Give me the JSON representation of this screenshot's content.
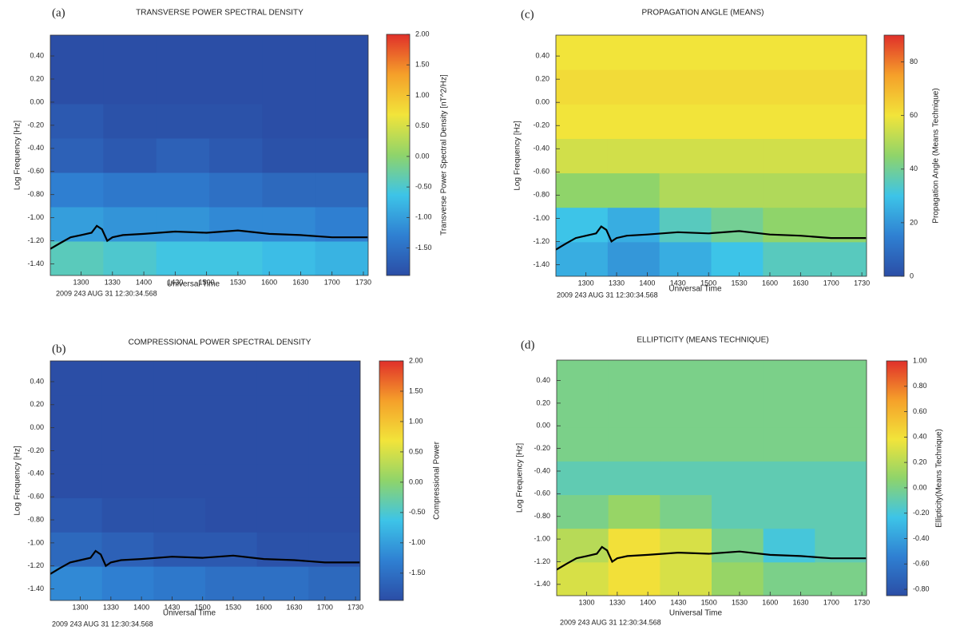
{
  "chart_data": [
    {
      "type": "spectrogram",
      "panel_label": "(a)",
      "title": "TRANSVERSE POWER SPECTRAL DENSITY",
      "x_label": "Universal Time",
      "y_label": "Log Frequency [Hz]",
      "colorbar_label": "Transverse Power Spectral Density [nT^2/Hz]",
      "footer": "2009 243 AUG 31 12:30:34.568",
      "xlim": [
        750.57,
        1054.6
      ],
      "xticks": [
        {
          "value": 780,
          "label": "1300"
        },
        {
          "value": 810,
          "label": "1330"
        },
        {
          "value": 840,
          "label": "1400"
        },
        {
          "value": 870,
          "label": "1430"
        },
        {
          "value": 900,
          "label": "1500"
        },
        {
          "value": 930,
          "label": "1530"
        },
        {
          "value": 960,
          "label": "1600"
        },
        {
          "value": 990,
          "label": "1630"
        },
        {
          "value": 1020,
          "label": "1700"
        },
        {
          "value": 1050,
          "label": "1730"
        }
      ],
      "ylim": [
        -1.5,
        0.58
      ],
      "yticks": [
        {
          "value": -1.4,
          "label": "-1.40"
        },
        {
          "value": -1.2,
          "label": "-1.20"
        },
        {
          "value": -1.0,
          "label": "-1.00"
        },
        {
          "value": -0.8,
          "label": "-0.80"
        },
        {
          "value": -0.6,
          "label": "-0.60"
        },
        {
          "value": -0.4,
          "label": "-0.40"
        },
        {
          "value": -0.2,
          "label": "-0.20"
        },
        {
          "value": 0,
          "label": "0.00"
        },
        {
          "value": 0.2,
          "label": "0.20"
        },
        {
          "value": 0.4,
          "label": "0.40"
        }
      ],
      "clim": [
        -1.95,
        2.0
      ],
      "cticks": [
        {
          "value": -1.5,
          "label": "-1.50"
        },
        {
          "value": -1.0,
          "label": "-1.00"
        },
        {
          "value": -0.5,
          "label": "-0.50"
        },
        {
          "value": 0,
          "label": "0.00"
        },
        {
          "value": 0.5,
          "label": "0.50"
        },
        {
          "value": 1.0,
          "label": "1.00"
        },
        {
          "value": 1.5,
          "label": "1.50"
        },
        {
          "value": 2.0,
          "label": "2.00"
        }
      ],
      "colormap": [
        "#2b4ea6",
        "#2f80d2",
        "#3dc4e8",
        "#8fd46a",
        "#f2e43a",
        "#f5a02a",
        "#e0302a"
      ],
      "values": [
        [
          -0.4,
          -0.5,
          -0.6,
          -0.6,
          -0.7,
          -0.8
        ],
        [
          -1.0,
          -1.1,
          -1.1,
          -1.2,
          -1.2,
          -1.3
        ],
        [
          -1.3,
          -1.4,
          -1.4,
          -1.5,
          -1.6,
          -1.6
        ],
        [
          -1.7,
          -1.8,
          -1.7,
          -1.8,
          -1.9,
          -1.9
        ],
        [
          -1.8,
          -1.9,
          -1.9,
          -1.9,
          -1.95,
          -1.95
        ],
        [
          -1.95,
          -1.95,
          -1.95,
          -1.95,
          -1.95,
          -1.95
        ],
        [
          -1.95,
          -1.95,
          -1.95,
          -1.95,
          -1.95,
          -1.95
        ]
      ],
      "line": {
        "color": "#000000",
        "x": [
          750.6,
          760,
          770,
          780,
          790,
          795,
          800,
          805,
          810,
          820,
          840,
          870,
          900,
          930,
          960,
          990,
          1020,
          1054
        ],
        "y": [
          -1.27,
          -1.22,
          -1.17,
          -1.15,
          -1.13,
          -1.07,
          -1.1,
          -1.2,
          -1.17,
          -1.15,
          -1.14,
          -1.12,
          -1.13,
          -1.11,
          -1.14,
          -1.15,
          -1.17,
          -1.17
        ]
      }
    },
    {
      "type": "spectrogram",
      "panel_label": "(b)",
      "title": "COMPRESSIONAL POWER SPECTRAL DENSITY",
      "x_label": "Universal Time",
      "y_label": "Log Frequency [Hz]",
      "colorbar_label": "Compressional Power",
      "footer": "2009 243 AUG 31 12:30:34.568",
      "xlim": [
        750.57,
        1054.6
      ],
      "xticks": [
        {
          "value": 780,
          "label": "1300"
        },
        {
          "value": 810,
          "label": "1330"
        },
        {
          "value": 840,
          "label": "1400"
        },
        {
          "value": 870,
          "label": "1430"
        },
        {
          "value": 900,
          "label": "1500"
        },
        {
          "value": 930,
          "label": "1530"
        },
        {
          "value": 960,
          "label": "1600"
        },
        {
          "value": 990,
          "label": "1630"
        },
        {
          "value": 1020,
          "label": "1700"
        },
        {
          "value": 1050,
          "label": "1730"
        }
      ],
      "ylim": [
        -1.5,
        0.58
      ],
      "yticks": [
        {
          "value": -1.4,
          "label": "-1.40"
        },
        {
          "value": -1.2,
          "label": "-1.20"
        },
        {
          "value": -1.0,
          "label": "-1.00"
        },
        {
          "value": -0.8,
          "label": "-0.80"
        },
        {
          "value": -0.6,
          "label": "-0.60"
        },
        {
          "value": -0.4,
          "label": "-0.40"
        },
        {
          "value": -0.2,
          "label": "-0.20"
        },
        {
          "value": 0,
          "label": "0.00"
        },
        {
          "value": 0.2,
          "label": "0.20"
        },
        {
          "value": 0.4,
          "label": "0.40"
        }
      ],
      "clim": [
        -1.95,
        2.0
      ],
      "cticks": [
        {
          "value": -1.5,
          "label": "-1.50"
        },
        {
          "value": -1.0,
          "label": "-1.00"
        },
        {
          "value": -0.5,
          "label": "-0.50"
        },
        {
          "value": 0,
          "label": "0.00"
        },
        {
          "value": 0.5,
          "label": "0.50"
        },
        {
          "value": 1.0,
          "label": "1.00"
        },
        {
          "value": 1.5,
          "label": "1.50"
        },
        {
          "value": 2.0,
          "label": "2.00"
        }
      ],
      "colormap": [
        "#2b4ea6",
        "#2f80d2",
        "#3dc4e8",
        "#8fd46a",
        "#f2e43a",
        "#f5a02a",
        "#e0302a"
      ],
      "values": [
        [
          -1.2,
          -1.3,
          -1.4,
          -1.5,
          -1.5,
          -1.6
        ],
        [
          -1.6,
          -1.7,
          -1.8,
          -1.8,
          -1.9,
          -1.9
        ],
        [
          -1.8,
          -1.9,
          -1.9,
          -1.95,
          -1.95,
          -1.95
        ],
        [
          -1.95,
          -1.95,
          -1.95,
          -1.95,
          -1.95,
          -1.95
        ],
        [
          -1.95,
          -1.95,
          -1.95,
          -1.95,
          -1.95,
          -1.95
        ],
        [
          -1.95,
          -1.95,
          -1.95,
          -1.95,
          -1.95,
          -1.95
        ],
        [
          -1.95,
          -1.95,
          -1.95,
          -1.95,
          -1.95,
          -1.95
        ]
      ],
      "line": {
        "color": "#000000",
        "x": [
          750.6,
          760,
          770,
          780,
          790,
          795,
          800,
          805,
          810,
          820,
          840,
          870,
          900,
          930,
          960,
          990,
          1020,
          1054
        ],
        "y": [
          -1.27,
          -1.22,
          -1.17,
          -1.15,
          -1.13,
          -1.07,
          -1.1,
          -1.2,
          -1.17,
          -1.15,
          -1.14,
          -1.12,
          -1.13,
          -1.11,
          -1.14,
          -1.15,
          -1.17,
          -1.17
        ]
      }
    },
    {
      "type": "spectrogram",
      "panel_label": "(c)",
      "title": "PROPAGATION ANGLE (MEANS)",
      "x_label": "Universal Time",
      "y_label": "Log Frequency [Hz]",
      "colorbar_label": "Propagation Angle (Means Technique)",
      "footer": "2009 243 AUG 31 12:30:34.568",
      "xlim": [
        750.57,
        1054.6
      ],
      "xticks": [
        {
          "value": 780,
          "label": "1300"
        },
        {
          "value": 810,
          "label": "1330"
        },
        {
          "value": 840,
          "label": "1400"
        },
        {
          "value": 870,
          "label": "1430"
        },
        {
          "value": 900,
          "label": "1500"
        },
        {
          "value": 930,
          "label": "1530"
        },
        {
          "value": 960,
          "label": "1600"
        },
        {
          "value": 990,
          "label": "1630"
        },
        {
          "value": 1020,
          "label": "1700"
        },
        {
          "value": 1050,
          "label": "1730"
        }
      ],
      "ylim": [
        -1.5,
        0.58
      ],
      "yticks": [
        {
          "value": -1.4,
          "label": "-1.40"
        },
        {
          "value": -1.2,
          "label": "-1.20"
        },
        {
          "value": -1.0,
          "label": "-1.00"
        },
        {
          "value": -0.8,
          "label": "-0.80"
        },
        {
          "value": -0.6,
          "label": "-0.60"
        },
        {
          "value": -0.4,
          "label": "-0.40"
        },
        {
          "value": -0.2,
          "label": "-0.20"
        },
        {
          "value": 0,
          "label": "0.00"
        },
        {
          "value": 0.2,
          "label": "0.20"
        },
        {
          "value": 0.4,
          "label": "0.40"
        }
      ],
      "clim": [
        0,
        90
      ],
      "cticks": [
        0,
        20,
        40,
        60,
        80
      ],
      "colormap": [
        "#2b4ea6",
        "#2f80d2",
        "#3dc4e8",
        "#8fd46a",
        "#f2e43a",
        "#f5a02a",
        "#e0302a"
      ],
      "values": [
        [
          25,
          20,
          25,
          30,
          35,
          35
        ],
        [
          30,
          25,
          35,
          40,
          45,
          45
        ],
        [
          45,
          45,
          50,
          50,
          50,
          50
        ],
        [
          55,
          55,
          55,
          55,
          55,
          55
        ],
        [
          60,
          60,
          60,
          60,
          60,
          60
        ],
        [
          62,
          62,
          62,
          62,
          62,
          62
        ],
        [
          60,
          60,
          60,
          60,
          60,
          60
        ]
      ],
      "line": {
        "color": "#000000",
        "x": [
          750.6,
          760,
          770,
          780,
          790,
          795,
          800,
          805,
          810,
          820,
          840,
          870,
          900,
          930,
          960,
          990,
          1020,
          1054
        ],
        "y": [
          -1.27,
          -1.22,
          -1.17,
          -1.15,
          -1.13,
          -1.07,
          -1.1,
          -1.2,
          -1.17,
          -1.15,
          -1.14,
          -1.12,
          -1.13,
          -1.11,
          -1.14,
          -1.15,
          -1.17,
          -1.17
        ]
      }
    },
    {
      "type": "spectrogram",
      "panel_label": "(d)",
      "title": "ELLIPTICITY (MEANS TECHNIQUE)",
      "x_label": "Universal Time",
      "y_label": "Log Frequency [Hz]",
      "colorbar_label": "Ellipticity(Means Technique)",
      "footer": "2009 243 AUG 31 12:30:34.568",
      "xlim": [
        750.57,
        1054.6
      ],
      "xticks": [
        {
          "value": 780,
          "label": "1300"
        },
        {
          "value": 810,
          "label": "1330"
        },
        {
          "value": 840,
          "label": "1400"
        },
        {
          "value": 870,
          "label": "1430"
        },
        {
          "value": 900,
          "label": "1500"
        },
        {
          "value": 930,
          "label": "1530"
        },
        {
          "value": 960,
          "label": "1600"
        },
        {
          "value": 990,
          "label": "1630"
        },
        {
          "value": 1020,
          "label": "1700"
        },
        {
          "value": 1050,
          "label": "1730"
        }
      ],
      "ylim": [
        -1.5,
        0.58
      ],
      "yticks": [
        {
          "value": -1.4,
          "label": "-1.40"
        },
        {
          "value": -1.2,
          "label": "-1.20"
        },
        {
          "value": -1.0,
          "label": "-1.00"
        },
        {
          "value": -0.8,
          "label": "-0.80"
        },
        {
          "value": -0.6,
          "label": "-0.60"
        },
        {
          "value": -0.4,
          "label": "-0.40"
        },
        {
          "value": -0.2,
          "label": "-0.20"
        },
        {
          "value": 0,
          "label": "0.00"
        },
        {
          "value": 0.2,
          "label": "0.20"
        },
        {
          "value": 0.4,
          "label": "0.40"
        }
      ],
      "clim": [
        -0.85,
        1.0
      ],
      "cticks": [
        {
          "value": -0.8,
          "label": "-0.80"
        },
        {
          "value": -0.6,
          "label": "-0.60"
        },
        {
          "value": -0.4,
          "label": "-0.40"
        },
        {
          "value": -0.2,
          "label": "-0.20"
        },
        {
          "value": 0,
          "label": "0.00"
        },
        {
          "value": 0.2,
          "label": "0.20"
        },
        {
          "value": 0.4,
          "label": "0.40"
        },
        {
          "value": 0.6,
          "label": "0.60"
        },
        {
          "value": 0.8,
          "label": "0.80"
        },
        {
          "value": 1.0,
          "label": "1.00"
        }
      ],
      "colormap": [
        "#2b4ea6",
        "#2f80d2",
        "#3dc4e8",
        "#8fd46a",
        "#f2e43a",
        "#f5a02a",
        "#e0302a"
      ],
      "values": [
        [
          0.3,
          0.4,
          0.3,
          0.1,
          0.0,
          0.0
        ],
        [
          0.2,
          0.4,
          0.3,
          0.0,
          -0.2,
          -0.1
        ],
        [
          0.0,
          0.1,
          0.0,
          -0.1,
          -0.1,
          -0.1
        ],
        [
          -0.1,
          -0.1,
          -0.1,
          -0.1,
          -0.1,
          -0.1
        ],
        [
          0.0,
          0.0,
          0.0,
          0.0,
          0.0,
          0.0
        ],
        [
          0.0,
          0.0,
          0.0,
          0.0,
          0.0,
          0.0
        ],
        [
          0.0,
          0.0,
          0.0,
          0.0,
          0.0,
          0.0
        ]
      ],
      "line": {
        "color": "#000000",
        "x": [
          750.6,
          760,
          770,
          780,
          790,
          795,
          800,
          805,
          810,
          820,
          840,
          870,
          900,
          930,
          960,
          990,
          1020,
          1054
        ],
        "y": [
          -1.27,
          -1.22,
          -1.17,
          -1.15,
          -1.13,
          -1.07,
          -1.1,
          -1.2,
          -1.17,
          -1.15,
          -1.14,
          -1.12,
          -1.13,
          -1.11,
          -1.14,
          -1.15,
          -1.17,
          -1.17
        ]
      }
    }
  ]
}
